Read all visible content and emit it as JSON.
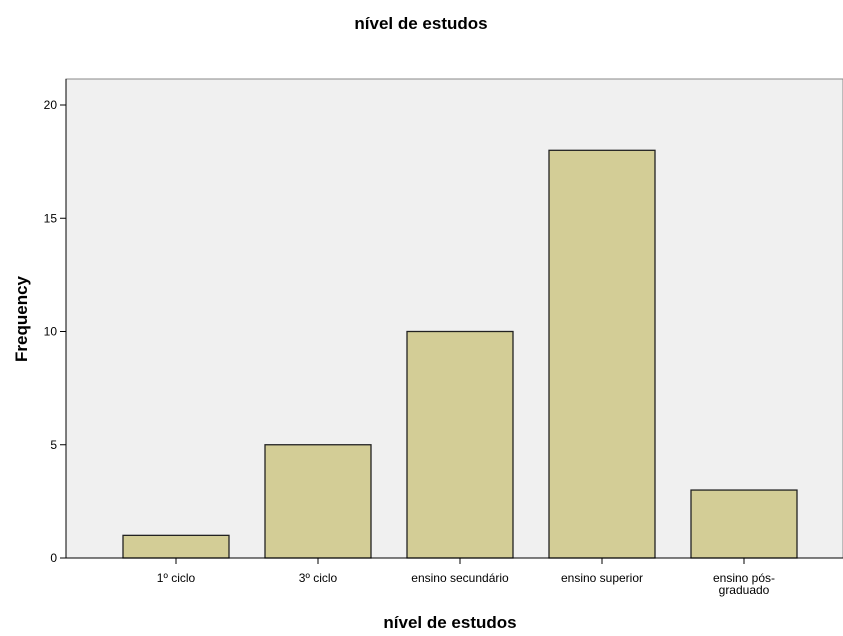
{
  "chart_data": {
    "type": "bar",
    "title": "nível de estudos",
    "xlabel": "nível de estudos",
    "ylabel": "Frequency",
    "categories": [
      "1º ciclo",
      "3º ciclo",
      "ensino secundário",
      "ensino superior",
      "ensino pós-graduado"
    ],
    "category_label_lines": [
      [
        "1º ciclo"
      ],
      [
        "3º ciclo"
      ],
      [
        "ensino secundário"
      ],
      [
        "ensino superior"
      ],
      [
        "ensino pós-",
        "graduado"
      ]
    ],
    "values": [
      1,
      5,
      10,
      18,
      3
    ],
    "ylim": [
      0,
      20
    ],
    "yticks": [
      0,
      5,
      10,
      15,
      20
    ],
    "grid": false,
    "legend": "none",
    "colors": {
      "bar_fill": "#d3cd96",
      "bar_stroke": "#222222",
      "plot_background": "#f0f0f0",
      "axis": "#000000"
    }
  }
}
